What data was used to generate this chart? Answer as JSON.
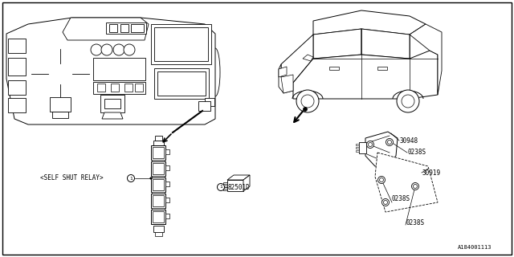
{
  "bg_color": "#ffffff",
  "line_color": "#000000",
  "fig_width": 6.4,
  "fig_height": 3.2,
  "dpi": 100,
  "labels": {
    "self_shut_relay": "<SELF SHUT RELAY>",
    "relay_num": "1",
    "part_82501D": "82501D",
    "part_82501D_num": "1",
    "part_30948": "30948",
    "part_0238S_1": "0238S",
    "part_0238S_2": "0238S",
    "part_0238S_3": "0238S",
    "part_30919": "30919",
    "diagram_id": "A184001113"
  }
}
